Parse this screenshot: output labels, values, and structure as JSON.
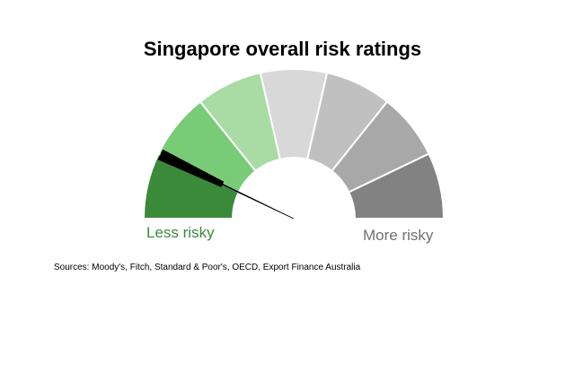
{
  "chart_data": {
    "type": "gauge",
    "title": "Singapore overall risk ratings",
    "segments": 7,
    "segment_colors": [
      "#3a8a3a",
      "#78cc78",
      "#a8dca4",
      "#d8d8d8",
      "#c0c0c0",
      "#a8a8a8",
      "#828282"
    ],
    "value_segment": 1,
    "min_label": "Less risky",
    "max_label": "More risky",
    "needle_color": "#000000",
    "marker_color": "#000000"
  },
  "source_text": "Sources: Moody's, Fitch, Standard & Poor's, OECD, Export Finance Australia"
}
